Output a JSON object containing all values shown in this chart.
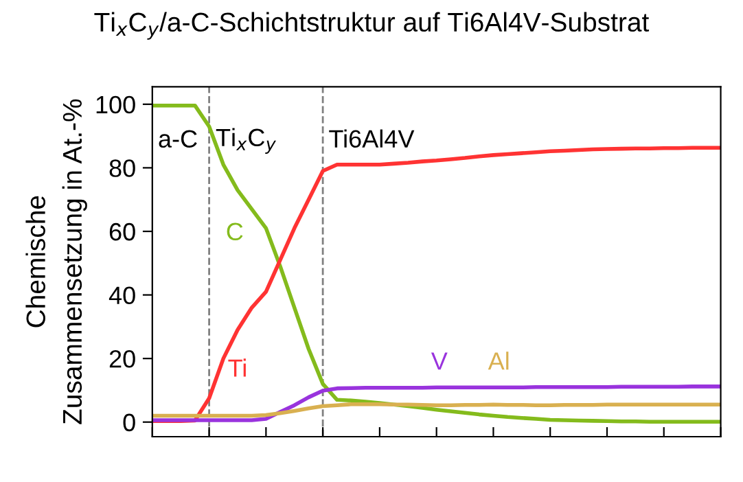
{
  "chart_data": {
    "type": "line",
    "title": "Ti$_{x}$C$_{y}$/a-C-Schichtstruktur auf Ti6Al4V-Substrat",
    "ylabel": "Chemische\nZusammensetzung in At.-%",
    "categories": [
      null,
      null,
      null,
      null,
      null,
      null,
      null,
      null,
      null,
      null,
      null,
      null,
      null,
      null,
      null,
      null,
      null,
      null,
      null,
      null,
      null,
      null,
      null,
      null,
      null,
      null,
      null,
      null,
      null,
      null,
      null,
      null,
      null,
      null,
      null,
      null,
      null,
      null,
      null,
      null,
      null
    ],
    "ylim": [
      -4.6,
      105.5
    ],
    "yticks": [
      0,
      20,
      40,
      60,
      80,
      100
    ],
    "grid": false,
    "legend": false,
    "marker": "none",
    "line_style": "solid",
    "annotations": [
      "a-C",
      "Ti$_{x}$C$_{y}$",
      "Ti6Al4V",
      "C",
      "Ti",
      "V",
      "Al"
    ],
    "series": [
      {
        "color": "#84bb1c",
        "values": [
          99.6,
          99.6,
          99.6,
          99.6,
          93,
          81,
          73,
          67,
          61,
          49,
          36,
          23,
          12,
          7,
          6.8,
          6.4,
          6,
          5.5,
          5,
          4.5,
          3.9,
          3.4,
          2.9,
          2.4,
          2,
          1.6,
          1.3,
          1,
          0.7,
          0.6,
          0.5,
          0.4,
          0.3,
          0.2,
          0.2,
          0.1,
          0.1,
          0.1,
          0.1,
          0.1,
          0.1
        ]
      },
      {
        "color": "#ff3333",
        "values": [
          0.3,
          0.3,
          0.3,
          0.5,
          7.5,
          20,
          29,
          36,
          41,
          51,
          61,
          70,
          79,
          81,
          81,
          81,
          81,
          81.3,
          81.6,
          82,
          82.3,
          82.7,
          83.1,
          83.6,
          84,
          84.3,
          84.6,
          84.9,
          85.2,
          85.4,
          85.6,
          85.8,
          85.9,
          86,
          86.1,
          86.1,
          86.2,
          86.2,
          86.3,
          86.3,
          86.3
        ]
      },
      {
        "color": "#9933dd",
        "values": [
          0.6,
          0.6,
          0.6,
          0.6,
          0.6,
          0.6,
          0.6,
          0.6,
          1,
          3.2,
          5.3,
          7.8,
          9.9,
          10.6,
          10.7,
          10.8,
          10.8,
          10.8,
          10.8,
          10.8,
          10.9,
          10.9,
          10.9,
          10.9,
          10.9,
          10.9,
          10.9,
          11,
          11,
          11,
          11,
          11,
          11,
          11.1,
          11.1,
          11.1,
          11.1,
          11.1,
          11.2,
          11.2,
          11.2
        ]
      },
      {
        "color": "#d9b050",
        "values": [
          2,
          2,
          2,
          2,
          2,
          2,
          2,
          2,
          2.2,
          2.8,
          3.5,
          4.3,
          5,
          5.3,
          5.6,
          5.6,
          5.6,
          5.5,
          5.5,
          5.4,
          5.3,
          5.3,
          5.4,
          5.4,
          5.5,
          5.4,
          5.4,
          5.3,
          5.3,
          5.4,
          5.4,
          5.4,
          5.5,
          5.5,
          5.5,
          5.5,
          5.5,
          5.5,
          5.5,
          5.5,
          5.5
        ]
      }
    ]
  }
}
